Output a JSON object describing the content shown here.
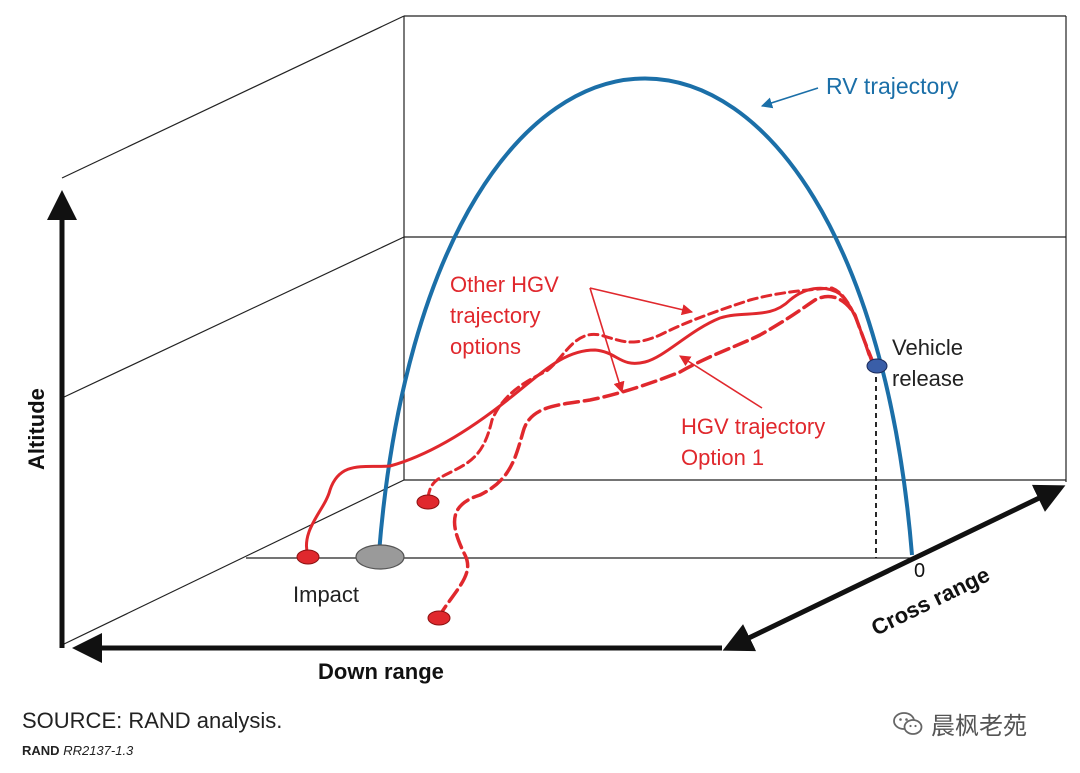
{
  "diagram": {
    "labels": {
      "altitude": "Altitude",
      "down_range": "Down range",
      "cross_range": "Cross range",
      "zero": "0",
      "impact": "Impact",
      "vehicle_release": [
        "Vehicle",
        "release"
      ],
      "rv_trajectory": "RV trajectory",
      "other_hgv": [
        "Other HGV",
        "trajectory",
        "options"
      ],
      "hgv_option1": [
        "HGV trajectory",
        "Option 1"
      ]
    },
    "colors": {
      "rv": "#1b6fa8",
      "hgv": "#e0282d",
      "axis": "#111111",
      "box": "#222222",
      "impact_fill": "#9a9a9a",
      "release_fill": "#3a5ea8"
    }
  },
  "footer": {
    "source": "SOURCE: RAND analysis.",
    "tag_org": "RAND",
    "tag_id": "RR2137-1.3"
  },
  "watermark": {
    "text": "晨枫老苑",
    "icon": "wechat-icon"
  }
}
